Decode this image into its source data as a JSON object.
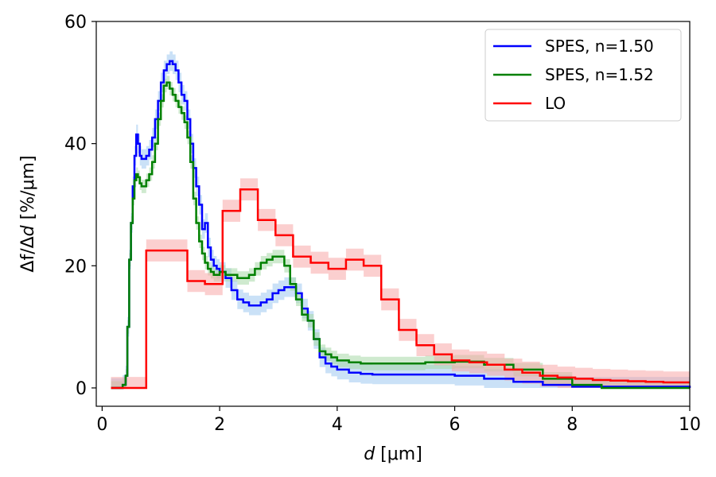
{
  "chart_data": {
    "type": "line",
    "step": true,
    "xlabel_italic": "d",
    "xlabel_rest": " [μm]",
    "ylabel_pre": "Δf/Δ",
    "ylabel_italic": "d",
    "ylabel_post": " [%/μm]",
    "xlim": [
      -0.1,
      10
    ],
    "ylim": [
      -3,
      60
    ],
    "xticks": [
      0,
      2,
      4,
      6,
      8,
      10
    ],
    "xtick_labels": [
      "0",
      "2",
      "4",
      "6",
      "8",
      "10"
    ],
    "yticks": [
      0,
      20,
      40,
      60
    ],
    "ytick_labels": [
      "0",
      "20",
      "40",
      "60"
    ],
    "grid": false,
    "legend_position": "top-right",
    "series": [
      {
        "name": "SPES, n=1.50",
        "color": "#0000ff",
        "band_color": "#9ec9f0",
        "band": 1.6,
        "x": [
          0.15,
          0.35,
          0.4,
          0.43,
          0.46,
          0.49,
          0.52,
          0.55,
          0.58,
          0.61,
          0.64,
          0.67,
          0.7,
          0.75,
          0.8,
          0.85,
          0.9,
          0.95,
          1.0,
          1.05,
          1.1,
          1.15,
          1.2,
          1.25,
          1.3,
          1.35,
          1.4,
          1.45,
          1.5,
          1.55,
          1.6,
          1.65,
          1.7,
          1.75,
          1.8,
          1.85,
          1.9,
          1.95,
          2.0,
          2.1,
          2.2,
          2.3,
          2.4,
          2.5,
          2.6,
          2.7,
          2.8,
          2.9,
          3.0,
          3.1,
          3.2,
          3.3,
          3.4,
          3.5,
          3.6,
          3.7,
          3.8,
          3.9,
          4.0,
          4.2,
          4.4,
          4.6,
          5.0,
          6.0,
          6.5,
          7.0,
          7.5,
          8.0,
          10.0
        ],
        "y": [
          0,
          0.5,
          2,
          10,
          21,
          27,
          33,
          38,
          41.5,
          40,
          38,
          37.5,
          37.5,
          38,
          39,
          41,
          44,
          47,
          50,
          52,
          53,
          53.5,
          53,
          52,
          50,
          48,
          47,
          44,
          40,
          36,
          33,
          30,
          26,
          27,
          23,
          21,
          20,
          19.5,
          19,
          18,
          16,
          14.5,
          14,
          13.5,
          13.5,
          14,
          14.5,
          15.5,
          16,
          16.5,
          16.5,
          15.5,
          13,
          11,
          8,
          5,
          4,
          3.5,
          3,
          2.5,
          2.3,
          2.2,
          2.2,
          2.0,
          1.5,
          1.0,
          0.5,
          0.2,
          0
        ]
      },
      {
        "name": "SPES, n=1.52",
        "color": "#008000",
        "band_color": "#a8d8a8",
        "band": 1.1,
        "x": [
          0.15,
          0.35,
          0.4,
          0.43,
          0.46,
          0.49,
          0.52,
          0.55,
          0.58,
          0.61,
          0.64,
          0.67,
          0.7,
          0.75,
          0.8,
          0.85,
          0.9,
          0.95,
          1.0,
          1.05,
          1.1,
          1.15,
          1.2,
          1.25,
          1.3,
          1.35,
          1.4,
          1.45,
          1.5,
          1.55,
          1.6,
          1.65,
          1.7,
          1.75,
          1.8,
          1.85,
          1.9,
          1.95,
          2.0,
          2.1,
          2.2,
          2.3,
          2.4,
          2.5,
          2.6,
          2.7,
          2.8,
          2.9,
          3.0,
          3.1,
          3.2,
          3.3,
          3.4,
          3.5,
          3.6,
          3.7,
          3.8,
          3.9,
          4.0,
          4.2,
          4.4,
          4.6,
          5.0,
          5.5,
          6.0,
          6.5,
          7.0,
          7.5,
          8.0,
          8.5,
          10.0
        ],
        "y": [
          0,
          0.5,
          2,
          10,
          21,
          27,
          31,
          34,
          35,
          34.5,
          33.5,
          33,
          33,
          34,
          35,
          37,
          40,
          44,
          47,
          49.5,
          50,
          49,
          48,
          47,
          46,
          45,
          43.5,
          41,
          37,
          31,
          27,
          24,
          22,
          20.5,
          19.5,
          19,
          18.5,
          18.5,
          19,
          18.5,
          18.5,
          18,
          18,
          18.5,
          19.5,
          20.5,
          21,
          21.5,
          21.5,
          20,
          17,
          14.5,
          12,
          11,
          8,
          6,
          5.5,
          5,
          4.5,
          4.2,
          4.0,
          4.0,
          4.0,
          4.2,
          4.3,
          3.8,
          3.0,
          1.5,
          0.5,
          0,
          0
        ]
      },
      {
        "name": "LO",
        "color": "#ff0000",
        "band_color": "#f7a8a8",
        "band": 1.8,
        "x": [
          0.15,
          0.75,
          1.45,
          1.75,
          2.05,
          2.35,
          2.65,
          2.95,
          3.25,
          3.55,
          3.85,
          4.15,
          4.45,
          4.75,
          5.05,
          5.35,
          5.65,
          5.95,
          6.25,
          6.55,
          6.85,
          7.15,
          7.45,
          7.75,
          8.05,
          8.35,
          8.65,
          8.95,
          9.25,
          9.55,
          10.0
        ],
        "y": [
          0,
          22.5,
          17.5,
          17,
          29,
          32.5,
          27.5,
          25,
          21.5,
          20.5,
          19.5,
          21,
          20,
          14.5,
          9.5,
          7,
          5.5,
          4.5,
          4.2,
          3.8,
          3.0,
          2.5,
          2.0,
          1.7,
          1.5,
          1.3,
          1.2,
          1.1,
          1.0,
          0.9,
          0.9
        ]
      }
    ]
  }
}
